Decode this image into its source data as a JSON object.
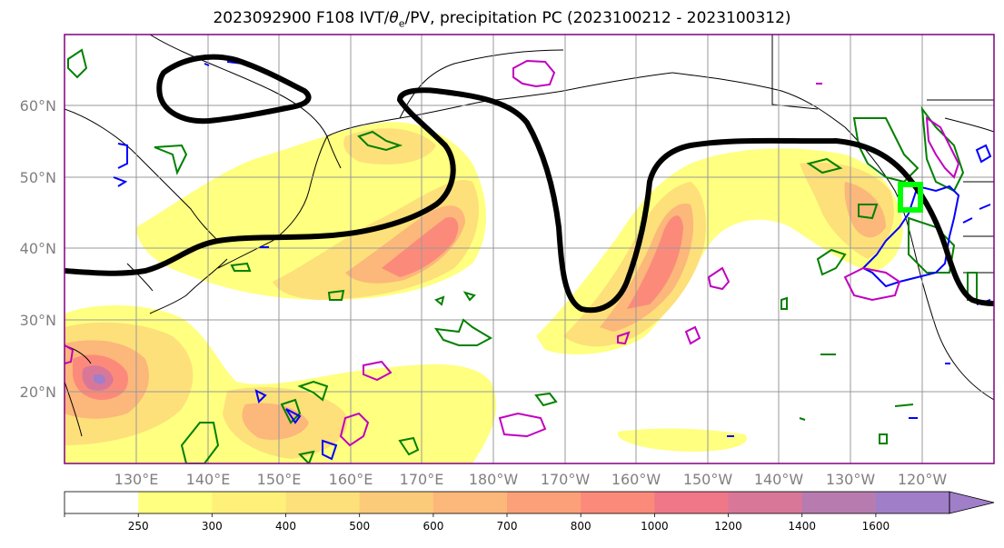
{
  "title": {
    "prefix": "2023092900 F108 IVT/",
    "theta": "θ",
    "theta_sub": "e",
    "suffix": "/PV, precipitation PC (2023100212 - 2023100312)"
  },
  "lat_labels": [
    "60°N",
    "50°N",
    "40°N",
    "30°N",
    "20°N"
  ],
  "lon_labels": [
    "130°E",
    "140°E",
    "150°E",
    "160°E",
    "170°E",
    "180°W",
    "170°W",
    "160°W",
    "150°W",
    "140°W",
    "130°W",
    "120°W"
  ],
  "colorbar": {
    "ticks": [
      "250",
      "300",
      "400",
      "500",
      "600",
      "700",
      "800",
      "1000",
      "1200",
      "1400",
      "1600"
    ],
    "colors": [
      "#ffffff",
      "#ffff80",
      "#fff07a",
      "#fde07a",
      "#fccb7a",
      "#fcb77a",
      "#fca07a",
      "#fc8a7a",
      "#f07788",
      "#d97799",
      "#b87bb0",
      "#a07ec8"
    ]
  },
  "colors": {
    "pv_contour": "#000000",
    "green_contour": "#008000",
    "blue_contour": "#0000ff",
    "magenta_contour": "#c000c0",
    "target_box": "#00ff00",
    "grid": "#999999"
  }
}
